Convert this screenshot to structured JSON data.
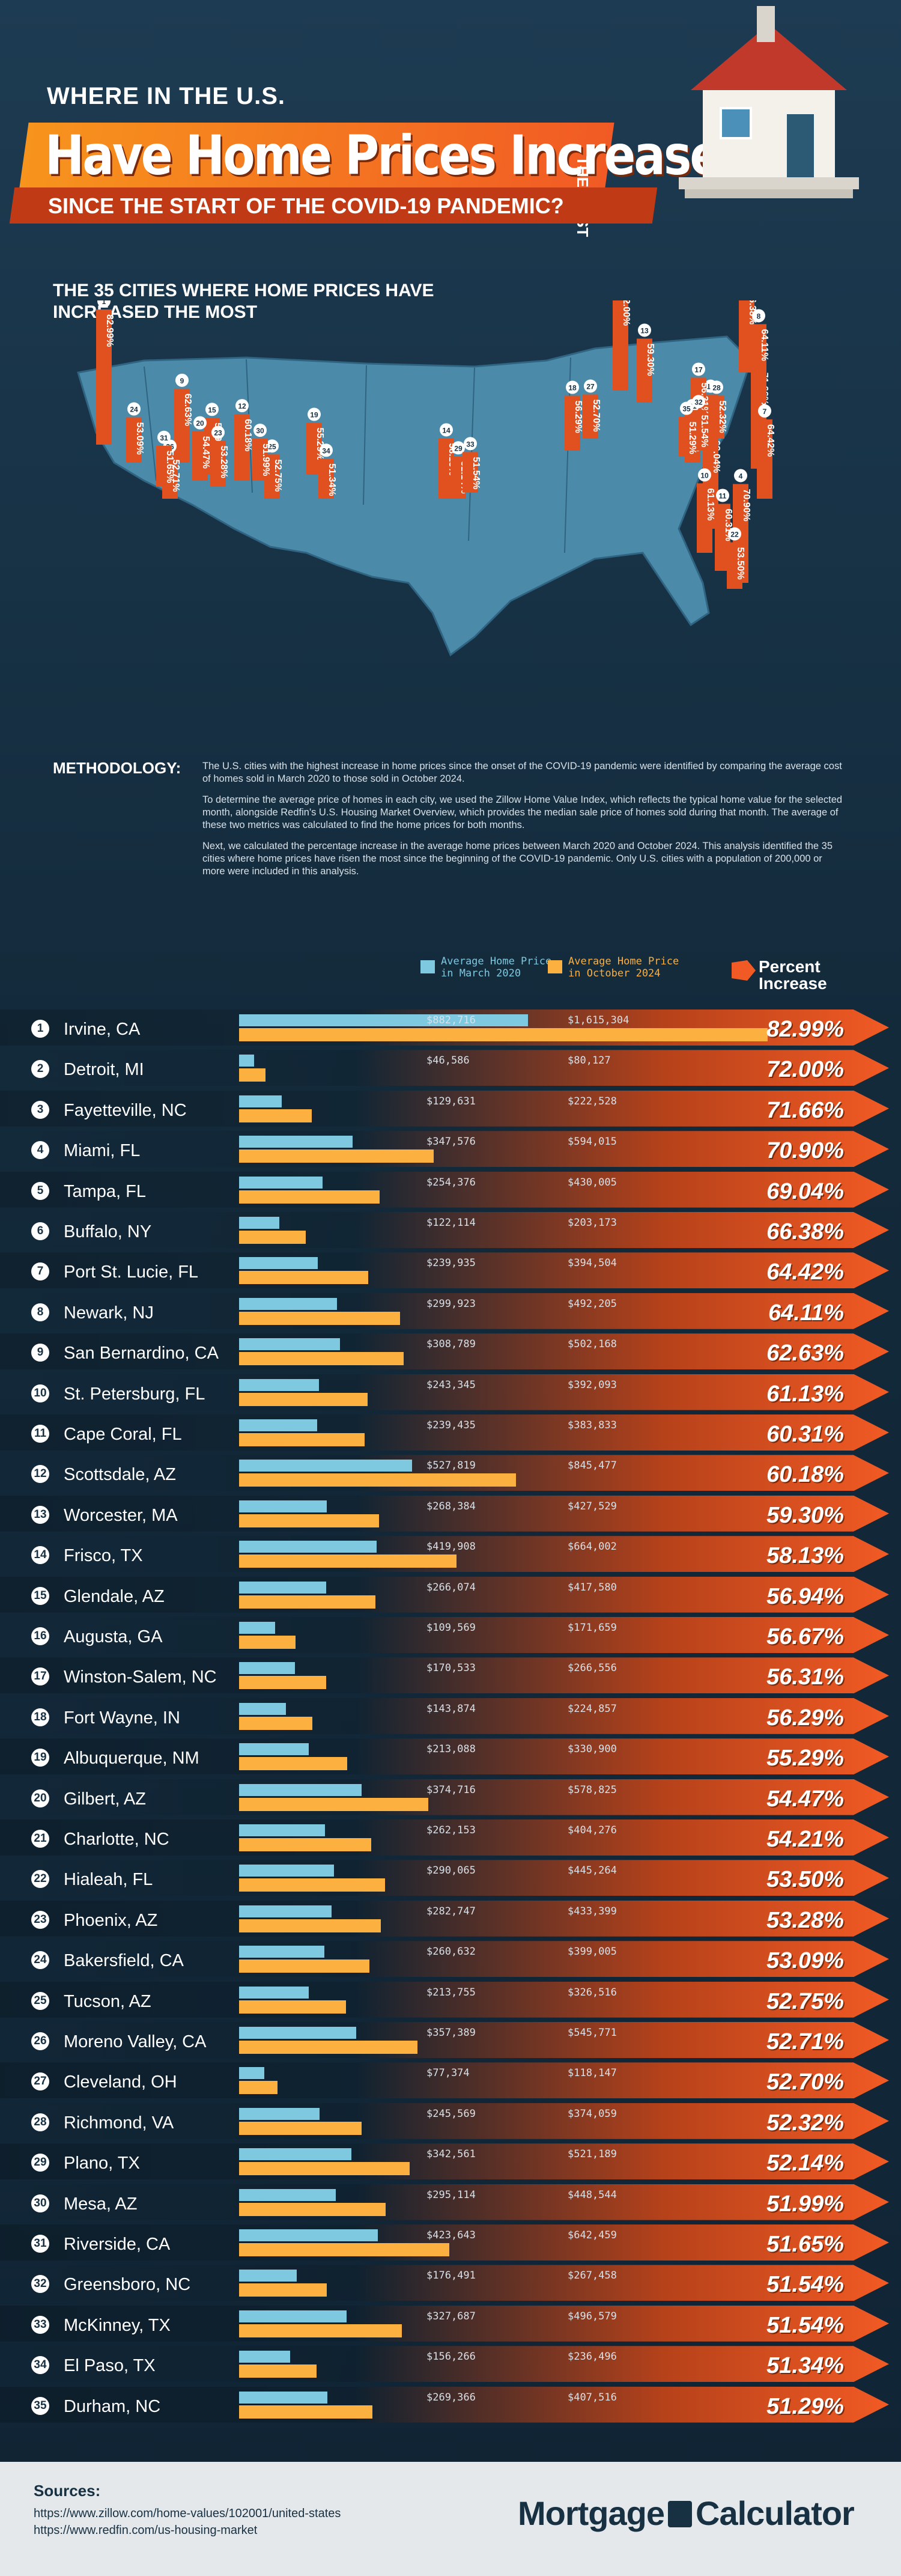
{
  "header": {
    "line1": "WHERE IN THE U.S.",
    "line2": "Have Home Prices Increased",
    "line2_side": "THE MOST",
    "line3": "SINCE THE START OF THE COVID-19 PANDEMIC?"
  },
  "map": {
    "title": "THE 35 CITIES WHERE HOME PRICES HAVE INCREASED THE MOST"
  },
  "methodology": {
    "heading": "METHODOLOGY:",
    "p1": "The U.S. cities with the highest increase in home prices since the onset of the COVID-19 pandemic were identified by comparing the average cost of homes sold in March 2020 to those sold in October 2024.",
    "p2": "To determine the average price of homes in each city, we used the Zillow Home Value Index, which reflects the typical home value for the selected month, alongside Redfin's U.S. Housing Market Overview, which provides the median sale price of homes sold during that month. The average of these two metrics was calculated to find the home prices for both months.",
    "p3": "Next, we calculated the percentage increase in the average home prices between March 2020 and October 2024. This analysis identified the 35 cities where home prices have risen the most since the beginning of the COVID-19 pandemic. Only U.S. cities with a population of 200,000 or more were included in this analysis."
  },
  "legend": {
    "march_line1": "Average Home Price",
    "march_line2": "in March 2020",
    "october_line1": "Average Home Price",
    "october_line2": "in October 2024",
    "pct_line1": "Percent",
    "pct_line2": "Increase"
  },
  "colors": {
    "march": "#7ec9e0",
    "october": "#fbb040",
    "accent": "#f15a24",
    "background": "#173042"
  },
  "chart_data": {
    "type": "bar",
    "series": [
      {
        "name": "Average Home Price in March 2020"
      },
      {
        "name": "Average Home Price in October 2024"
      },
      {
        "name": "Percent Increase"
      }
    ],
    "rows": [
      {
        "rank": "1",
        "city": "Irvine, CA",
        "march": "$882,716",
        "october": "$1,615,304",
        "march_v": 882716,
        "october_v": 1615304,
        "pct": "82.99%"
      },
      {
        "rank": "2",
        "city": "Detroit, MI",
        "march": "$46,586",
        "october": "$80,127",
        "march_v": 46586,
        "october_v": 80127,
        "pct": "72.00%"
      },
      {
        "rank": "3",
        "city": "Fayetteville, NC",
        "march": "$129,631",
        "october": "$222,528",
        "march_v": 129631,
        "october_v": 222528,
        "pct": "71.66%"
      },
      {
        "rank": "4",
        "city": "Miami, FL",
        "march": "$347,576",
        "october": "$594,015",
        "march_v": 347576,
        "october_v": 594015,
        "pct": "70.90%"
      },
      {
        "rank": "5",
        "city": "Tampa, FL",
        "march": "$254,376",
        "october": "$430,005",
        "march_v": 254376,
        "october_v": 430005,
        "pct": "69.04%"
      },
      {
        "rank": "6",
        "city": "Buffalo, NY",
        "march": "$122,114",
        "october": "$203,173",
        "march_v": 122114,
        "october_v": 203173,
        "pct": "66.38%"
      },
      {
        "rank": "7",
        "city": "Port St. Lucie, FL",
        "march": "$239,935",
        "october": "$394,504",
        "march_v": 239935,
        "october_v": 394504,
        "pct": "64.42%"
      },
      {
        "rank": "8",
        "city": "Newark, NJ",
        "march": "$299,923",
        "october": "$492,205",
        "march_v": 299923,
        "october_v": 492205,
        "pct": "64.11%"
      },
      {
        "rank": "9",
        "city": "San Bernardino, CA",
        "march": "$308,789",
        "october": "$502,168",
        "march_v": 308789,
        "october_v": 502168,
        "pct": "62.63%"
      },
      {
        "rank": "10",
        "city": "St. Petersburg, FL",
        "march": "$243,345",
        "october": "$392,093",
        "march_v": 243345,
        "october_v": 392093,
        "pct": "61.13%"
      },
      {
        "rank": "11",
        "city": "Cape Coral, FL",
        "march": "$239,435",
        "october": "$383,833",
        "march_v": 239435,
        "october_v": 383833,
        "pct": "60.31%"
      },
      {
        "rank": "12",
        "city": "Scottsdale, AZ",
        "march": "$527,819",
        "october": "$845,477",
        "march_v": 527819,
        "october_v": 845477,
        "pct": "60.18%"
      },
      {
        "rank": "13",
        "city": "Worcester, MA",
        "march": "$268,384",
        "october": "$427,529",
        "march_v": 268384,
        "october_v": 427529,
        "pct": "59.30%"
      },
      {
        "rank": "14",
        "city": "Frisco, TX",
        "march": "$419,908",
        "october": "$664,002",
        "march_v": 419908,
        "october_v": 664002,
        "pct": "58.13%"
      },
      {
        "rank": "15",
        "city": "Glendale, AZ",
        "march": "$266,074",
        "october": "$417,580",
        "march_v": 266074,
        "october_v": 417580,
        "pct": "56.94%"
      },
      {
        "rank": "16",
        "city": "Augusta, GA",
        "march": "$109,569",
        "october": "$171,659",
        "march_v": 109569,
        "october_v": 171659,
        "pct": "56.67%"
      },
      {
        "rank": "17",
        "city": "Winston-Salem, NC",
        "march": "$170,533",
        "october": "$266,556",
        "march_v": 170533,
        "october_v": 266556,
        "pct": "56.31%"
      },
      {
        "rank": "18",
        "city": "Fort Wayne, IN",
        "march": "$143,874",
        "october": "$224,857",
        "march_v": 143874,
        "october_v": 224857,
        "pct": "56.29%"
      },
      {
        "rank": "19",
        "city": "Albuquerque, NM",
        "march": "$213,088",
        "october": "$330,900",
        "march_v": 213088,
        "october_v": 330900,
        "pct": "55.29%"
      },
      {
        "rank": "20",
        "city": "Gilbert, AZ",
        "march": "$374,716",
        "october": "$578,825",
        "march_v": 374716,
        "october_v": 578825,
        "pct": "54.47%"
      },
      {
        "rank": "21",
        "city": "Charlotte, NC",
        "march": "$262,153",
        "october": "$404,276",
        "march_v": 262153,
        "october_v": 404276,
        "pct": "54.21%"
      },
      {
        "rank": "22",
        "city": "Hialeah, FL",
        "march": "$290,065",
        "october": "$445,264",
        "march_v": 290065,
        "october_v": 445264,
        "pct": "53.50%"
      },
      {
        "rank": "23",
        "city": "Phoenix, AZ",
        "march": "$282,747",
        "october": "$433,399",
        "march_v": 282747,
        "october_v": 433399,
        "pct": "53.28%"
      },
      {
        "rank": "24",
        "city": "Bakersfield, CA",
        "march": "$260,632",
        "october": "$399,005",
        "march_v": 260632,
        "october_v": 399005,
        "pct": "53.09%"
      },
      {
        "rank": "25",
        "city": "Tucson, AZ",
        "march": "$213,755",
        "october": "$326,516",
        "march_v": 213755,
        "october_v": 326516,
        "pct": "52.75%"
      },
      {
        "rank": "26",
        "city": "Moreno Valley, CA",
        "march": "$357,389",
        "october": "$545,771",
        "march_v": 357389,
        "october_v": 545771,
        "pct": "52.71%"
      },
      {
        "rank": "27",
        "city": "Cleveland, OH",
        "march": "$77,374",
        "october": "$118,147",
        "march_v": 77374,
        "october_v": 118147,
        "pct": "52.70%"
      },
      {
        "rank": "28",
        "city": "Richmond, VA",
        "march": "$245,569",
        "october": "$374,059",
        "march_v": 245569,
        "october_v": 374059,
        "pct": "52.32%"
      },
      {
        "rank": "29",
        "city": "Plano, TX",
        "march": "$342,561",
        "october": "$521,189",
        "march_v": 342561,
        "october_v": 521189,
        "pct": "52.14%"
      },
      {
        "rank": "30",
        "city": "Mesa, AZ",
        "march": "$295,114",
        "october": "$448,544",
        "march_v": 295114,
        "october_v": 448544,
        "pct": "51.99%"
      },
      {
        "rank": "31",
        "city": "Riverside, CA",
        "march": "$423,643",
        "october": "$642,459",
        "march_v": 423643,
        "october_v": 642459,
        "pct": "51.65%"
      },
      {
        "rank": "32",
        "city": "Greensboro, NC",
        "march": "$176,491",
        "october": "$267,458",
        "march_v": 176491,
        "october_v": 267458,
        "pct": "51.54%"
      },
      {
        "rank": "33",
        "city": "McKinney, TX",
        "march": "$327,687",
        "october": "$496,579",
        "march_v": 327687,
        "october_v": 496579,
        "pct": "51.54%"
      },
      {
        "rank": "34",
        "city": "El Paso, TX",
        "march": "$156,266",
        "october": "$236,496",
        "march_v": 156266,
        "october_v": 236496,
        "pct": "51.34%"
      },
      {
        "rank": "35",
        "city": "Durham, NC",
        "march": "$269,366",
        "october": "$407,516",
        "march_v": 269366,
        "october_v": 407516,
        "pct": "51.29%"
      }
    ]
  },
  "footer": {
    "sources_heading": "Sources:",
    "source1": "https://www.zillow.com/home-values/102001/united-states",
    "source2": "https://www.redfin.com/us-housing-market",
    "brand_a": "Mortgage",
    "brand_b": "Calculator"
  }
}
